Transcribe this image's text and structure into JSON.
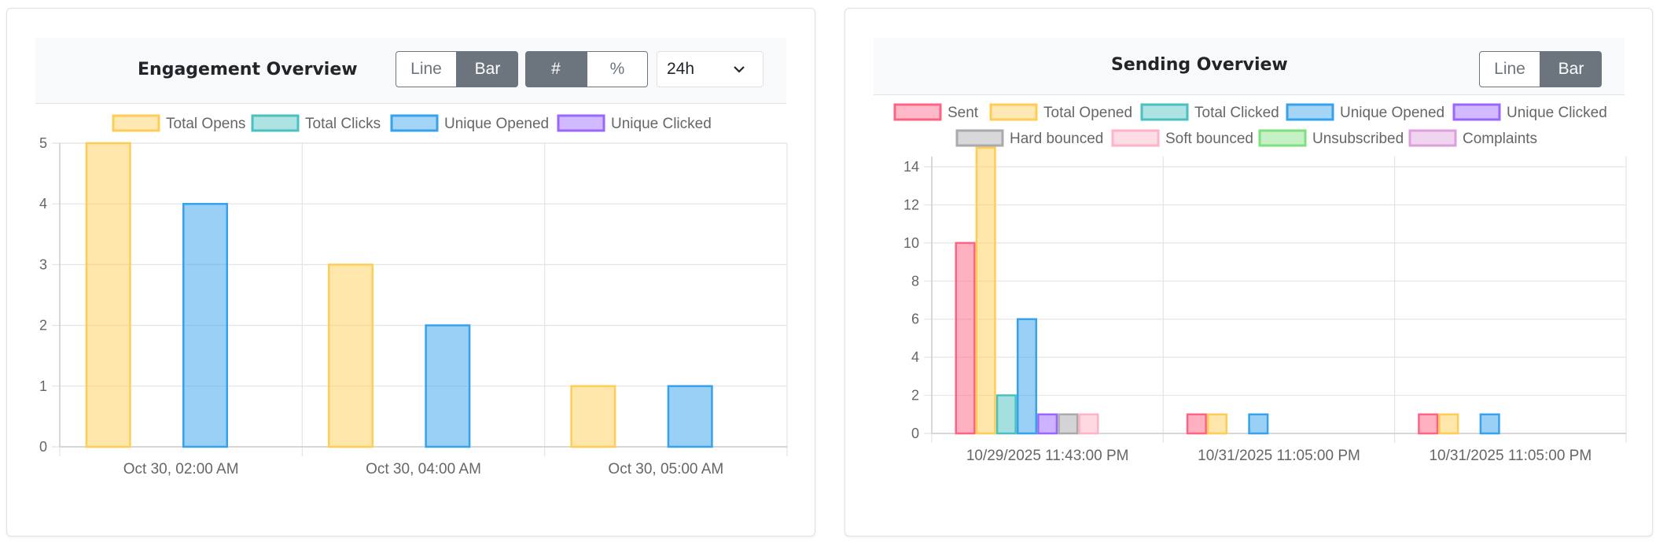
{
  "engagement": {
    "title": "Engagement Overview",
    "toggle_line": "Line",
    "toggle_bar": "Bar",
    "toggle_count": "#",
    "toggle_percent": "%",
    "range_value": "24h"
  },
  "sending": {
    "title": "Sending Overview",
    "toggle_line": "Line",
    "toggle_bar": "Bar"
  },
  "chart_data": [
    {
      "type": "bar",
      "title": "Engagement Overview",
      "categories": [
        "Oct 30, 02:00 AM",
        "Oct 30, 04:00 AM",
        "Oct 30, 05:00 AM"
      ],
      "series": [
        {
          "name": "Total Opens",
          "values": [
            5,
            3,
            1
          ],
          "color": "#ffcd56"
        },
        {
          "name": "Total Clicks",
          "values": [
            0,
            0,
            0
          ],
          "color": "#4bc0c0"
        },
        {
          "name": "Unique Opened",
          "values": [
            4,
            2,
            1
          ],
          "color": "#36a2eb"
        },
        {
          "name": "Unique Clicked",
          "values": [
            0,
            0,
            0
          ],
          "color": "#9966ff"
        }
      ],
      "ylim": [
        0,
        5
      ],
      "yticks": [
        "0",
        "1",
        "2",
        "3",
        "4",
        "5"
      ],
      "grid": true,
      "legend": "top"
    },
    {
      "type": "bar",
      "title": "Sending Overview",
      "categories": [
        "10/29/2025 11:43:00 PM",
        "10/31/2025 11:05:00 PM",
        "10/31/2025 11:05:00 PM"
      ],
      "series": [
        {
          "name": "Sent",
          "values": [
            10,
            1,
            1
          ],
          "color": "#ff6384"
        },
        {
          "name": "Total Opened",
          "values": [
            15,
            1,
            1
          ],
          "color": "#ffcd56"
        },
        {
          "name": "Total Clicked",
          "values": [
            2,
            0,
            0
          ],
          "color": "#4bc0c0"
        },
        {
          "name": "Unique Opened",
          "values": [
            6,
            1,
            1
          ],
          "color": "#36a2eb"
        },
        {
          "name": "Unique Clicked",
          "values": [
            1,
            0,
            0
          ],
          "color": "#9966ff"
        },
        {
          "name": "Hard bounced",
          "values": [
            1,
            0,
            0
          ],
          "color": "#a9a9ae"
        },
        {
          "name": "Soft bounced",
          "values": [
            1,
            0,
            0
          ],
          "color": "#ffb3c6"
        },
        {
          "name": "Unsubscribed",
          "values": [
            0,
            0,
            0
          ],
          "color": "#7ee07e"
        },
        {
          "name": "Complaints",
          "values": [
            0,
            0,
            0
          ],
          "color": "#dda0dd"
        }
      ],
      "ylim": [
        0,
        15
      ],
      "yticks": [
        "0",
        "2",
        "4",
        "6",
        "8",
        "10",
        "12",
        "14"
      ],
      "grid": true,
      "legend": "top"
    }
  ]
}
